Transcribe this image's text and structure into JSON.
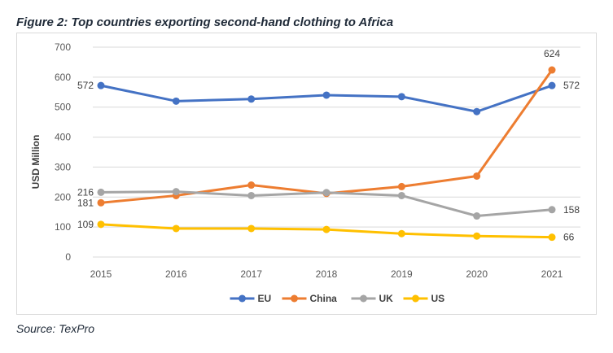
{
  "figure_title": "Figure 2: Top countries exporting second-hand clothing to Africa",
  "source": "Source: TexPro",
  "chart_data": {
    "type": "line",
    "title": "",
    "xlabel": "",
    "ylabel": "USD Million",
    "x": [
      "2015",
      "2016",
      "2017",
      "2018",
      "2019",
      "2020",
      "2021"
    ],
    "ylim": [
      0,
      700
    ],
    "yticks": [
      0,
      100,
      200,
      300,
      400,
      500,
      600,
      700
    ],
    "grid": true,
    "legend_position": "bottom",
    "series": [
      {
        "name": "EU",
        "color": "#4472c4",
        "values": [
          572,
          520,
          527,
          540,
          535,
          485,
          572
        ]
      },
      {
        "name": "China",
        "color": "#ed7d31",
        "values": [
          181,
          205,
          240,
          212,
          235,
          270,
          624
        ]
      },
      {
        "name": "UK",
        "color": "#a5a5a5",
        "values": [
          216,
          218,
          205,
          215,
          205,
          137,
          158
        ]
      },
      {
        "name": "US",
        "color": "#ffc000",
        "values": [
          109,
          95,
          95,
          92,
          78,
          70,
          66
        ]
      }
    ],
    "data_labels": [
      {
        "series": "EU",
        "x": "2015",
        "text": "572",
        "side": "left"
      },
      {
        "series": "EU",
        "x": "2021",
        "text": "572",
        "side": "right"
      },
      {
        "series": "China",
        "x": "2015",
        "text": "181",
        "side": "left"
      },
      {
        "series": "China",
        "x": "2021",
        "text": "624",
        "side": "above"
      },
      {
        "series": "UK",
        "x": "2015",
        "text": "216",
        "side": "left"
      },
      {
        "series": "UK",
        "x": "2021",
        "text": "158",
        "side": "right"
      },
      {
        "series": "US",
        "x": "2015",
        "text": "109",
        "side": "left"
      },
      {
        "series": "US",
        "x": "2021",
        "text": "66",
        "side": "right"
      }
    ]
  }
}
